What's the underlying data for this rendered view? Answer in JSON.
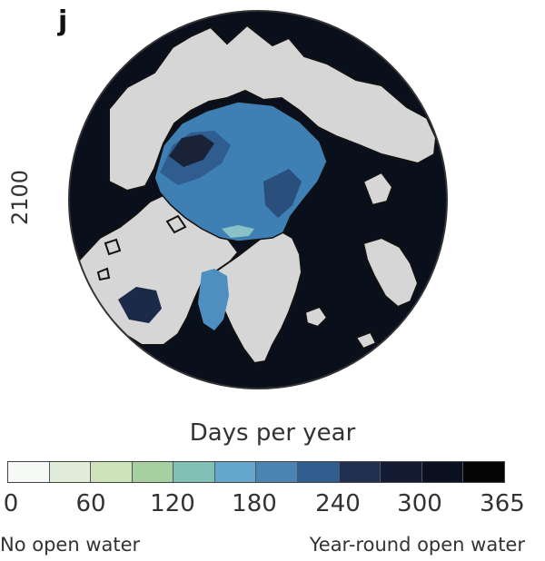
{
  "panel_letter": "j",
  "year_label": "2100",
  "legend": {
    "title": "Days per year",
    "ticks": [
      "0",
      "60",
      "120",
      "180",
      "240",
      "300",
      "365"
    ],
    "end_left": "No open water",
    "end_right": "Year-round open water",
    "bin_colors": [
      "#f7f9f7",
      "#e2ecdb",
      "#cfe3bb",
      "#a7d0a1",
      "#80c0b7",
      "#63a8cc",
      "#4a84b3",
      "#2f5d8f",
      "#1f2f52",
      "#141c33",
      "#0b1020",
      "#050505"
    ]
  },
  "map": {
    "land_color": "#d6d6d6",
    "ocean_dark": "#0a0f1c",
    "ocean_blue": "#3e7fb4",
    "ocean_light": "#88c2c7",
    "coast_color": "#111111"
  }
}
